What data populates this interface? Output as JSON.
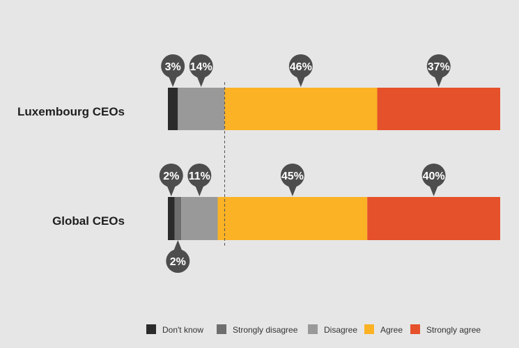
{
  "chart_data": {
    "type": "bar",
    "orientation": "horizontal",
    "stacked": true,
    "categories": [
      "Luxembourg CEOs",
      "Global CEOs"
    ],
    "series": [
      {
        "name": "Don't know",
        "color": "#2b2b2b",
        "values": [
          3,
          2
        ],
        "labels": [
          "3%",
          "2%"
        ]
      },
      {
        "name": "Strongly disagree",
        "color": "#6e6e6e",
        "values": [
          0,
          2
        ],
        "labels": [
          "",
          "2%"
        ]
      },
      {
        "name": "Disagree",
        "color": "#999999",
        "values": [
          14,
          11
        ],
        "labels": [
          "14%",
          "11%"
        ]
      },
      {
        "name": "Agree",
        "color": "#fbb225",
        "values": [
          46,
          45
        ],
        "labels": [
          "46%",
          "45%"
        ]
      },
      {
        "name": "Strongly agree",
        "color": "#e5512a",
        "values": [
          37,
          40
        ],
        "labels": [
          "37%",
          "40%"
        ]
      }
    ],
    "divider": "between Disagree and Agree (dashed line)",
    "legend_position": "bottom-right",
    "label_style": "dark speech-bubble markers",
    "bubble_color": "#4d4d4d"
  }
}
